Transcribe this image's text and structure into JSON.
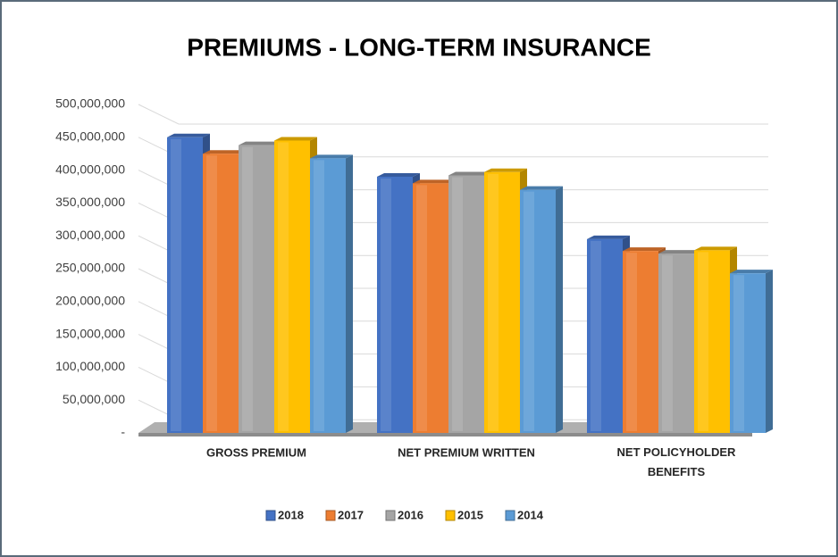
{
  "chart_data": {
    "type": "bar3d",
    "title": "PREMIUMS - LONG-TERM INSURANCE",
    "categories": [
      "GROSS PREMIUM",
      "NET PREMIUM WRITTEN",
      "NET POLICYHOLDER BENEFITS"
    ],
    "series": [
      {
        "name": "2018",
        "color": "#4472c4",
        "values": [
          450000000,
          390000000,
          295000000
        ]
      },
      {
        "name": "2017",
        "color": "#ed7d31",
        "values": [
          425000000,
          380000000,
          277000000
        ]
      },
      {
        "name": "2016",
        "color": "#a5a5a5",
        "values": [
          438000000,
          392000000,
          273000000
        ]
      },
      {
        "name": "2015",
        "color": "#ffc000",
        "values": [
          445000000,
          397000000,
          278000000
        ]
      },
      {
        "name": "2014",
        "color": "#5b9bd5",
        "values": [
          418000000,
          370000000,
          243000000
        ]
      }
    ],
    "ylim": [
      0,
      500000000
    ],
    "yticks": [
      {
        "value": 0,
        "label": "-"
      },
      {
        "value": 50000000,
        "label": "50,000,000"
      },
      {
        "value": 100000000,
        "label": "100,000,000"
      },
      {
        "value": 150000000,
        "label": "150,000,000"
      },
      {
        "value": 200000000,
        "label": "200,000,000"
      },
      {
        "value": 250000000,
        "label": "250,000,000"
      },
      {
        "value": 300000000,
        "label": "300,000,000"
      },
      {
        "value": 350000000,
        "label": "350,000,000"
      },
      {
        "value": 400000000,
        "label": "400,000,000"
      },
      {
        "value": 450000000,
        "label": "450,000,000"
      },
      {
        "value": 500000000,
        "label": "500,000,000"
      }
    ],
    "grid": true,
    "legend": "bottom"
  }
}
